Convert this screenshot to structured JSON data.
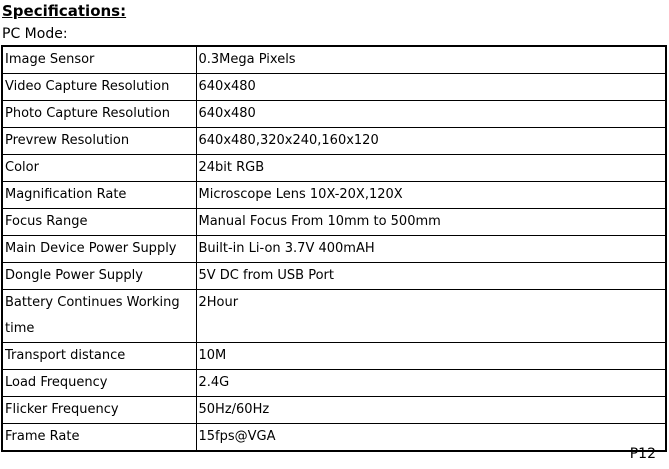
{
  "page": {
    "heading": "Specifications:",
    "subheading": "PC Mode:",
    "page_number": "P12"
  },
  "table": {
    "rows": [
      {
        "label": "Image Sensor",
        "value": "0.3Mega Pixels"
      },
      {
        "label": "Video Capture Resolution",
        "value": "640x480"
      },
      {
        "label": "Photo Capture Resolution",
        "value": "640x480"
      },
      {
        "label": "Prevrew Resolution",
        "value": "640x480,320x240,160x120"
      },
      {
        "label": "Color",
        "value": "24bit RGB"
      },
      {
        "label": "Magnification Rate",
        "value": "Microscope Lens 10X-20X,120X"
      },
      {
        "label": "Focus Range",
        "value": "Manual Focus From 10mm to 500mm"
      },
      {
        "label": "Main Device Power Supply",
        "value": "Built-in Li-on 3.7V 400mAH"
      },
      {
        "label": "Dongle Power Supply",
        "value": "5V DC from USB Port"
      },
      {
        "label": "Battery Continues Working time",
        "value": "2Hour"
      },
      {
        "label": "Transport distance",
        "value": "10M"
      },
      {
        "label": "Load Frequency",
        "value": "2.4G"
      },
      {
        "label": "Flicker Frequency",
        "value": "50Hz/60Hz"
      },
      {
        "label": "Frame Rate",
        "value": "15fps@VGA"
      }
    ]
  }
}
